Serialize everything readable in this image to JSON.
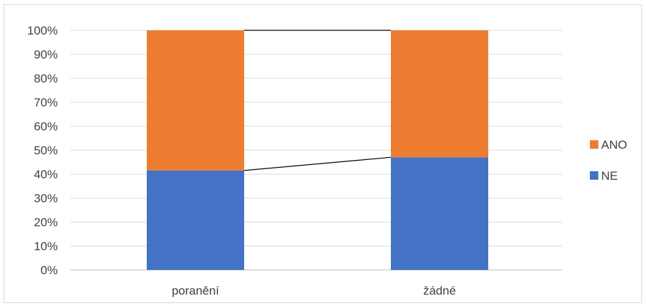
{
  "chart_data": {
    "type": "bar",
    "stacked": true,
    "percent_stacked": true,
    "categories": [
      "poranění",
      "žádné"
    ],
    "series": [
      {
        "name": "NE",
        "values": [
          41.5,
          47
        ],
        "color": "#4472c4"
      },
      {
        "name": "ANO",
        "values": [
          58.5,
          53
        ],
        "color": "#ed7d31"
      }
    ],
    "ylim": [
      0,
      100
    ],
    "y_ticks": [
      "0%",
      "10%",
      "20%",
      "30%",
      "40%",
      "50%",
      "60%",
      "70%",
      "80%",
      "90%",
      "100%"
    ],
    "grid": true,
    "series_lines": true,
    "legend_position": "right",
    "legend_order": [
      "ANO",
      "NE"
    ],
    "title": "",
    "xlabel": "",
    "ylabel": ""
  }
}
